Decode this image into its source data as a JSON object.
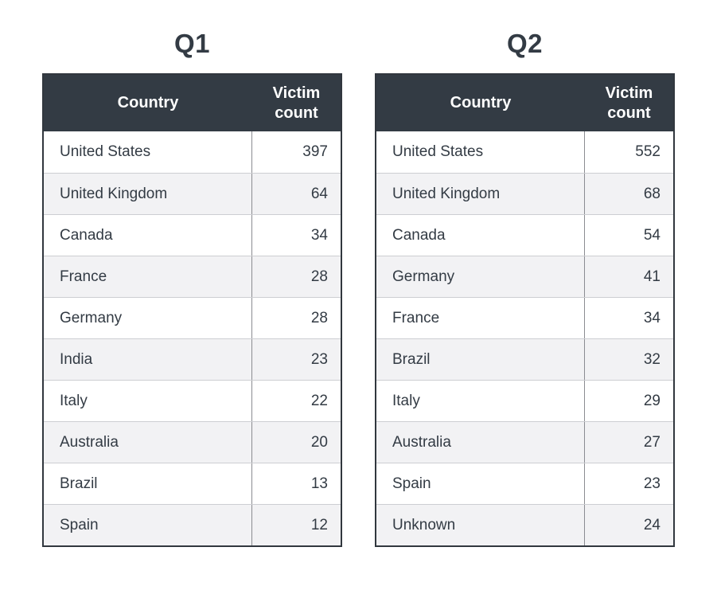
{
  "colors": {
    "page_bg": "#ffffff",
    "header_bg": "#333b44",
    "header_text": "#ffffff",
    "row_bg": "#ffffff",
    "row_alt_bg": "#f2f2f4",
    "text": "#333b44",
    "table_border": "#31373e",
    "row_divider": "#cdced2",
    "column_divider": "#8b8c91"
  },
  "chart_data": [
    {
      "type": "table",
      "title": "Q1",
      "columns": [
        "Country",
        "Victim count"
      ],
      "categories": [
        "United States",
        "United Kingdom",
        "Canada",
        "France",
        "Germany",
        "India",
        "Italy",
        "Australia",
        "Brazil",
        "Spain"
      ],
      "values": [
        397,
        64,
        34,
        28,
        28,
        23,
        22,
        20,
        13,
        12
      ]
    },
    {
      "type": "table",
      "title": "Q2",
      "columns": [
        "Country",
        "Victim count"
      ],
      "categories": [
        "United States",
        "United Kingdom",
        "Canada",
        "Germany",
        "France",
        "Brazil",
        "Italy",
        "Australia",
        "Spain",
        "Unknown"
      ],
      "values": [
        552,
        68,
        54,
        41,
        34,
        32,
        29,
        27,
        23,
        24
      ]
    }
  ],
  "tables": [
    {
      "title": "Q1",
      "columns": [
        "Country",
        "Victim count"
      ],
      "rows": [
        [
          "United States",
          "397"
        ],
        [
          "United Kingdom",
          "64"
        ],
        [
          "Canada",
          "34"
        ],
        [
          "France",
          "28"
        ],
        [
          "Germany",
          "28"
        ],
        [
          "India",
          "23"
        ],
        [
          "Italy",
          "22"
        ],
        [
          "Australia",
          "20"
        ],
        [
          "Brazil",
          "13"
        ],
        [
          "Spain",
          "12"
        ]
      ]
    },
    {
      "title": "Q2",
      "columns": [
        "Country",
        "Victim count"
      ],
      "rows": [
        [
          "United States",
          "552"
        ],
        [
          "United Kingdom",
          "68"
        ],
        [
          "Canada",
          "54"
        ],
        [
          "Germany",
          "41"
        ],
        [
          "France",
          "34"
        ],
        [
          "Brazil",
          "32"
        ],
        [
          "Italy",
          "29"
        ],
        [
          "Australia",
          "27"
        ],
        [
          "Spain",
          "23"
        ],
        [
          "Unknown",
          "24"
        ]
      ]
    }
  ]
}
